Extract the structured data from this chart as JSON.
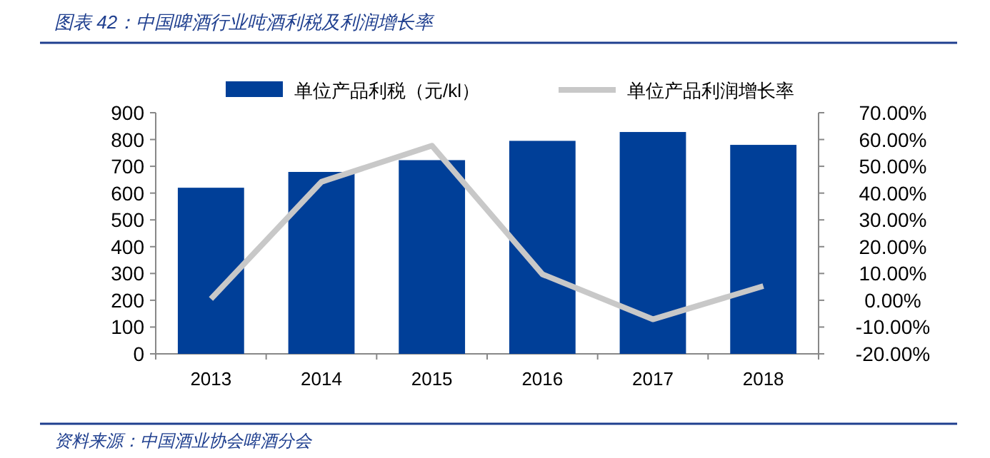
{
  "chart_data": {
    "type": "bar",
    "title": "图表 42：中国啤酒行业吨酒利税及利润增长率",
    "categories": [
      "2013",
      "2014",
      "2015",
      "2016",
      "2017",
      "2018"
    ],
    "series": [
      {
        "name": "单位产品利税（元/kl）",
        "color": "#003f98",
        "values": [
          620,
          679,
          723,
          795,
          828,
          780
        ]
      },
      {
        "name": "单位产品利润增长率",
        "type": "line",
        "axis": "y2",
        "color": "#c8c8c8",
        "values": [
          0.5,
          44.2,
          57.7,
          9.7,
          -7.1,
          5.3
        ]
      }
    ],
    "ylim": [
      0,
      900
    ],
    "yticks": [
      0,
      100,
      200,
      300,
      400,
      500,
      600,
      700,
      800,
      900
    ],
    "y2lim": [
      -20,
      70
    ],
    "y2ticks": [
      {
        "value": -20,
        "label": "-20.00%"
      },
      {
        "value": -10,
        "label": "-10.00%"
      },
      {
        "value": 0,
        "label": "0.00%"
      },
      {
        "value": 10,
        "label": "10.00%"
      },
      {
        "value": 20,
        "label": "20.00%"
      },
      {
        "value": 30,
        "label": "30.00%"
      },
      {
        "value": 40,
        "label": "40.00%"
      },
      {
        "value": 50,
        "label": "50.00%"
      },
      {
        "value": 60,
        "label": "60.00%"
      },
      {
        "value": 70,
        "label": "70.00%"
      }
    ],
    "legend": "top",
    "grid": false,
    "marker": "none",
    "annotations": [
      "资料来源：中国酒业协会啤酒分会"
    ]
  }
}
